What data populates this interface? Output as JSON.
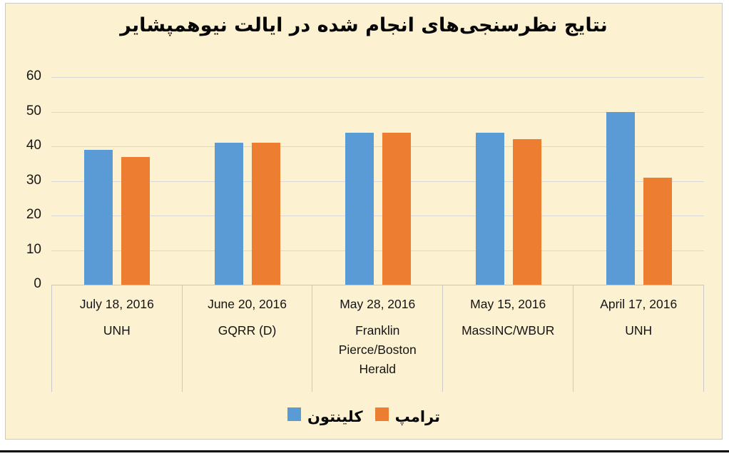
{
  "chart_data": {
    "type": "bar",
    "title": "نتایج نظرسنجی‌های انجام شده در ایالت نیوهمپشایر",
    "categories": [
      {
        "date": "July 18, 2016",
        "pollster": "UNH"
      },
      {
        "date": "June 20, 2016",
        "pollster": "GQRR (D)"
      },
      {
        "date": "May 28, 2016",
        "pollster": "Franklin Pierce/Boston Herald"
      },
      {
        "date": "May 15, 2016",
        "pollster": "MassINC/WBUR"
      },
      {
        "date": "April 17, 2016",
        "pollster": "UNH"
      }
    ],
    "series": [
      {
        "key": "clinton",
        "label": "کلینتون",
        "color": "#5B9BD5",
        "values": [
          39,
          41,
          44,
          44,
          50
        ]
      },
      {
        "key": "trump",
        "label": "ترامپ",
        "color": "#ED7D31",
        "values": [
          37,
          41,
          44,
          42,
          31
        ]
      }
    ],
    "y_axis": {
      "ticks": [
        0,
        10,
        20,
        30,
        40,
        50,
        60
      ],
      "min": 0,
      "max": 60
    },
    "grid": true,
    "legend_position": "bottom",
    "colors": {
      "plot_background": "#FCF1D1",
      "gridline": "#D8D8D8",
      "frame_border": "#C9C9C9",
      "axis_text": "#171717",
      "title_text": "#060606",
      "bottom_rule": "#000000"
    }
  }
}
